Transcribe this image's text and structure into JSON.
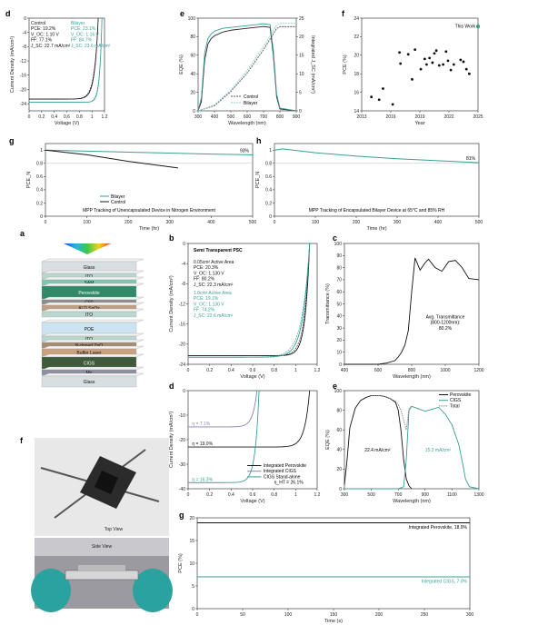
{
  "colors": {
    "teal": "#3a9e96",
    "teal_light": "#8fd0c9",
    "black": "#1a1a1a",
    "gray": "#9a9a9a",
    "purple": "#8a7fb5"
  },
  "chart_data": [
    {
      "id": "d_top",
      "panel": "d",
      "type": "line",
      "xlabel": "Voltage (V)",
      "ylabel": "Current Density (mA/cm²)",
      "xlim": [
        0,
        1.2
      ],
      "ylim": [
        -26,
        0
      ],
      "xticks": [
        0,
        0.2,
        0.4,
        0.6,
        0.8,
        1.0,
        1.2
      ],
      "yticks": [
        0,
        -4,
        -8,
        -12,
        -16,
        -20,
        -24
      ],
      "legend": [
        {
          "name": "Control",
          "lines": [
            "Control",
            "PCE: 19.2%",
            "V_OC: 1.10 V",
            "FF: 77.1%",
            "J_SC: 22.7 mA/cm²"
          ]
        },
        {
          "name": "Bilayer",
          "lines": [
            "Bilayer",
            "PCE: 23.1%",
            "V_OC: 1.16 V",
            "FF: 84.7%",
            "J_SC: 23.6 mA/cm²"
          ]
        }
      ],
      "series": [
        {
          "name": "Control",
          "jsc": 22.7,
          "voc": 1.1,
          "n": 2.2
        },
        {
          "name": "Bilayer",
          "jsc": 23.6,
          "voc": 1.16,
          "n": 1.4
        }
      ]
    },
    {
      "id": "e_top",
      "panel": "e",
      "type": "line",
      "xlabel": "Wavelength (nm)",
      "ylabel": "EQE (%)",
      "y2label": "Integrated J_SC (mA/cm²)",
      "xlim": [
        300,
        900
      ],
      "ylim": [
        0,
        100
      ],
      "y2lim": [
        0,
        25
      ],
      "xticks": [
        300,
        400,
        500,
        600,
        700,
        800,
        900
      ],
      "yticks": [
        0,
        20,
        40,
        60,
        80,
        100
      ],
      "y2ticks": [
        0,
        5,
        10,
        15,
        20,
        25
      ],
      "legend": [
        "Control",
        "Bilayer"
      ],
      "series": [
        {
          "name": "Control EQE",
          "x": [
            300,
            320,
            340,
            360,
            380,
            400,
            450,
            500,
            550,
            600,
            650,
            700,
            740,
            760,
            780,
            800,
            900
          ],
          "y": [
            0,
            10,
            55,
            72,
            78,
            81,
            85,
            87,
            88,
            89,
            90,
            91,
            90,
            60,
            15,
            2,
            0
          ]
        },
        {
          "name": "Bilayer EQE",
          "x": [
            300,
            320,
            340,
            360,
            380,
            400,
            450,
            500,
            550,
            600,
            650,
            700,
            740,
            760,
            780,
            800,
            900
          ],
          "y": [
            0,
            14,
            62,
            78,
            83,
            86,
            89,
            90,
            91,
            92,
            93,
            94,
            93,
            65,
            18,
            3,
            0
          ]
        },
        {
          "name": "Control Jsc",
          "x": [
            300,
            400,
            500,
            600,
            700,
            780,
            800,
            900
          ],
          "y": [
            0,
            1.4,
            5.2,
            10.2,
            16.5,
            22.2,
            22.7,
            22.7
          ]
        },
        {
          "name": "Bilayer Jsc",
          "x": [
            300,
            400,
            500,
            600,
            700,
            780,
            800,
            900
          ],
          "y": [
            0,
            1.6,
            5.6,
            10.9,
            17.4,
            23.1,
            23.6,
            23.6
          ]
        }
      ]
    },
    {
      "id": "f_top",
      "panel": "f",
      "type": "scatter",
      "xlabel": "Year",
      "ylabel": "PCE (%)",
      "xlim": [
        2013,
        2025
      ],
      "ylim": [
        14,
        24
      ],
      "xticks": [
        2013,
        2016,
        2019,
        2022,
        2025
      ],
      "yticks": [
        14,
        16,
        18,
        20,
        22,
        24
      ],
      "annotation": "This Work",
      "points": [
        [
          2014,
          15.5
        ],
        [
          2014.8,
          15.2
        ],
        [
          2015.2,
          16.4
        ],
        [
          2016.2,
          14.7
        ],
        [
          2016.9,
          20.3
        ],
        [
          2017,
          19.1
        ],
        [
          2017.8,
          20.1
        ],
        [
          2018.2,
          17.4
        ],
        [
          2018.5,
          20.6
        ],
        [
          2019.1,
          18.5
        ],
        [
          2019.5,
          19.6
        ],
        [
          2019.7,
          19.0
        ],
        [
          2020,
          19.7
        ],
        [
          2020.3,
          19.2
        ],
        [
          2020.5,
          20.2
        ],
        [
          2020.7,
          20.5
        ],
        [
          2021,
          18.9
        ],
        [
          2021.4,
          19.0
        ],
        [
          2021.7,
          20.4
        ],
        [
          2021.9,
          19.4
        ],
        [
          2022.2,
          18.4
        ],
        [
          2022.5,
          19.0
        ],
        [
          2023.2,
          19.5
        ],
        [
          2023.5,
          19.3
        ],
        [
          2023.8,
          18.5
        ],
        [
          2024.1,
          18.0
        ]
      ],
      "highlight": [
        2025,
        23.1
      ]
    },
    {
      "id": "g_top",
      "panel": "g",
      "type": "line",
      "xlabel": "Time (hr)",
      "ylabel": "PCE_N",
      "title": "MPP Tracking of Unencapsulated Device in Nitrogen Environment",
      "xlim": [
        0,
        500
      ],
      "ylim": [
        0,
        1.1
      ],
      "xticks": [
        0,
        100,
        200,
        300,
        400,
        500
      ],
      "yticks": [
        0.0,
        0.2,
        0.4,
        0.6,
        0.8,
        1.0
      ],
      "label": "93%",
      "legend": [
        "Bilayer",
        "Control"
      ],
      "series": [
        {
          "name": "Bilayer",
          "x": [
            0,
            100,
            200,
            300,
            400,
            500
          ],
          "y": [
            1.0,
            0.985,
            0.97,
            0.955,
            0.94,
            0.93
          ]
        },
        {
          "name": "Control",
          "x": [
            0,
            100,
            200,
            320
          ],
          "y": [
            1.0,
            0.93,
            0.83,
            0.73
          ]
        }
      ]
    },
    {
      "id": "h_top",
      "panel": "h",
      "type": "line",
      "xlabel": "Time (hr)",
      "ylabel": "PCE_N",
      "title": "MPP Tracking of Encapsulated Bilayer Device at 65°C and 85% RH",
      "xlim": [
        0,
        500
      ],
      "ylim": [
        0,
        1.1
      ],
      "xticks": [
        0,
        100,
        200,
        300,
        400,
        500
      ],
      "yticks": [
        0.0,
        0.2,
        0.4,
        0.6,
        0.8,
        1.0
      ],
      "label": "81%",
      "series": [
        {
          "name": "Bilayer",
          "x": [
            0,
            20,
            100,
            200,
            300,
            400,
            500
          ],
          "y": [
            1.0,
            1.02,
            0.96,
            0.91,
            0.87,
            0.84,
            0.81
          ]
        }
      ]
    },
    {
      "id": "b_bot",
      "panel": "b",
      "type": "line",
      "xlabel": "Voltage (V)",
      "ylabel": "Current Density (mA/cm²)",
      "title": "Semi Transparent PSC",
      "xlim": [
        0,
        1.2
      ],
      "ylim": [
        -24,
        0
      ],
      "xticks": [
        0,
        0.2,
        0.4,
        0.6,
        0.8,
        1.0,
        1.2
      ],
      "yticks": [
        0,
        -4,
        -8,
        -12,
        -16,
        -20,
        -24
      ],
      "legend": [
        {
          "name": "0.05cm² Active Area",
          "lines": [
            "0.05cm² Active Area",
            "PCE: 20.3%",
            "V_OC: 1.130 V",
            "FF: 80.2%",
            "J_SC: 22.3 mA/cm²"
          ]
        },
        {
          "name": "1.0cm² Active Area",
          "lines": [
            "1.0cm² Active Area",
            "PCE: 19.1%",
            "V_OC: 1.130 V",
            "FF: 74.2%",
            "J_SC: 22.6 mA/cm²"
          ]
        }
      ],
      "series": [
        {
          "name": "0.05cm²",
          "jsc": 22.3,
          "voc": 1.13,
          "n": 1.6
        },
        {
          "name": "1.0cm²",
          "jsc": 22.6,
          "voc": 1.13,
          "n": 2.4
        }
      ]
    },
    {
      "id": "c_bot",
      "panel": "c",
      "type": "line",
      "xlabel": "Wavelength (nm)",
      "ylabel": "Transmittance (%)",
      "xlim": [
        400,
        1200
      ],
      "ylim": [
        0,
        100
      ],
      "xticks": [
        400,
        600,
        800,
        1000,
        1200
      ],
      "yticks": [
        0,
        10,
        20,
        30,
        40,
        50,
        60,
        70,
        80,
        90,
        100
      ],
      "annotation": [
        "Avg. Transmittance",
        "(800-1200nm):",
        "80.2%"
      ],
      "series": [
        {
          "name": "Transmittance",
          "x": [
            400,
            500,
            600,
            650,
            700,
            720,
            740,
            760,
            780,
            800,
            820,
            850,
            880,
            900,
            940,
            980,
            1020,
            1060,
            1100,
            1140,
            1200
          ],
          "y": [
            0,
            0,
            0,
            1,
            3,
            6,
            10,
            16,
            28,
            60,
            88,
            78,
            84,
            87,
            80,
            77,
            85,
            86,
            80,
            71,
            70
          ]
        }
      ]
    },
    {
      "id": "d_bot",
      "panel": "d",
      "type": "line",
      "xlabel": "Voltage (V)",
      "ylabel": "Current Density (mA/cm²)",
      "xlim": [
        0,
        1.2
      ],
      "ylim": [
        -40,
        0
      ],
      "xticks": [
        0,
        0.2,
        0.4,
        0.6,
        0.8,
        1.0,
        1.2
      ],
      "yticks": [
        0,
        -10,
        -20,
        -30,
        -40
      ],
      "labels": [
        "η = 7.1%",
        "η = 19.0%",
        "η = 16.3%"
      ],
      "legend": [
        "Integrated Perovskite",
        "Integrated CIGS",
        "CIGS Stand-alone",
        "η_HT = 26.1%"
      ],
      "series": [
        {
          "name": "Integrated Perovskite",
          "jsc": 23.0,
          "voc": 1.13,
          "n": 1.8
        },
        {
          "name": "Integrated CIGS",
          "jsc": 14.8,
          "voc": 0.64,
          "n": 1.5
        },
        {
          "name": "CIGS Stand-alone",
          "jsc": 37.5,
          "voc": 0.66,
          "n": 1.4
        }
      ]
    },
    {
      "id": "e_bot",
      "panel": "e",
      "type": "line",
      "xlabel": "Wavelength (nm)",
      "ylabel": "EQE (%)",
      "xlim": [
        300,
        1300
      ],
      "ylim": [
        0,
        100
      ],
      "xticks": [
        300,
        500,
        700,
        900,
        1100,
        1300
      ],
      "yticks": [
        0,
        20,
        40,
        60,
        80,
        100
      ],
      "legend": [
        "Perovskite",
        "CIGS",
        "Total"
      ],
      "labels": [
        "22.4 mA/cm²",
        "15.2 mA/cm²"
      ],
      "series": [
        {
          "name": "Perovskite",
          "x": [
            300,
            320,
            340,
            380,
            420,
            460,
            500,
            560,
            600,
            640,
            680,
            700,
            720,
            740,
            760,
            780,
            800
          ],
          "y": [
            4,
            30,
            62,
            82,
            90,
            93,
            95,
            95,
            94,
            92,
            88,
            80,
            60,
            30,
            10,
            3,
            0
          ]
        },
        {
          "name": "CIGS",
          "x": [
            300,
            700,
            740,
            760,
            780,
            800,
            840,
            900,
            950,
            1000,
            1050,
            1100,
            1150,
            1180,
            1200,
            1230,
            1300
          ],
          "y": [
            0,
            0,
            2,
            30,
            80,
            84,
            82,
            79,
            81,
            83,
            76,
            65,
            45,
            25,
            10,
            2,
            0
          ]
        },
        {
          "name": "Total",
          "x": [
            500,
            560,
            600,
            640,
            680,
            700,
            720,
            740,
            760,
            780,
            800
          ],
          "y": [
            95,
            95,
            94,
            92,
            89,
            86,
            80,
            70,
            60,
            82,
            84
          ]
        }
      ]
    },
    {
      "id": "g_bot",
      "panel": "g",
      "type": "line",
      "xlabel": "Time (s)",
      "ylabel": "PCE (%)",
      "xlim": [
        0,
        300
      ],
      "ylim": [
        0,
        20
      ],
      "xticks": [
        0,
        50,
        100,
        150,
        200,
        250,
        300
      ],
      "yticks": [
        0,
        5,
        10,
        15,
        20
      ],
      "labels": [
        "Integrated Perovskite, 18.9%",
        "Integrated CIGS, 7.0%"
      ],
      "series": [
        {
          "name": "Integrated Perovskite",
          "x": [
            0,
            300
          ],
          "y": [
            18.9,
            18.9
          ]
        },
        {
          "name": "Integrated CIGS",
          "x": [
            0,
            300
          ],
          "y": [
            7.0,
            7.0
          ]
        }
      ]
    }
  ],
  "panel_a": {
    "label": "a",
    "layers": [
      "Glass",
      "ITO",
      "SAM",
      "Perovskite",
      "C60",
      "ALD SnOx",
      "ITO",
      "POE",
      "ITO",
      "N-doped ZnO",
      "Buffer Layer",
      "CIGS",
      "Mo",
      "Glass"
    ]
  },
  "panel_f": {
    "label": "f",
    "top_caption": "Top View",
    "bottom_caption": "Side View"
  }
}
